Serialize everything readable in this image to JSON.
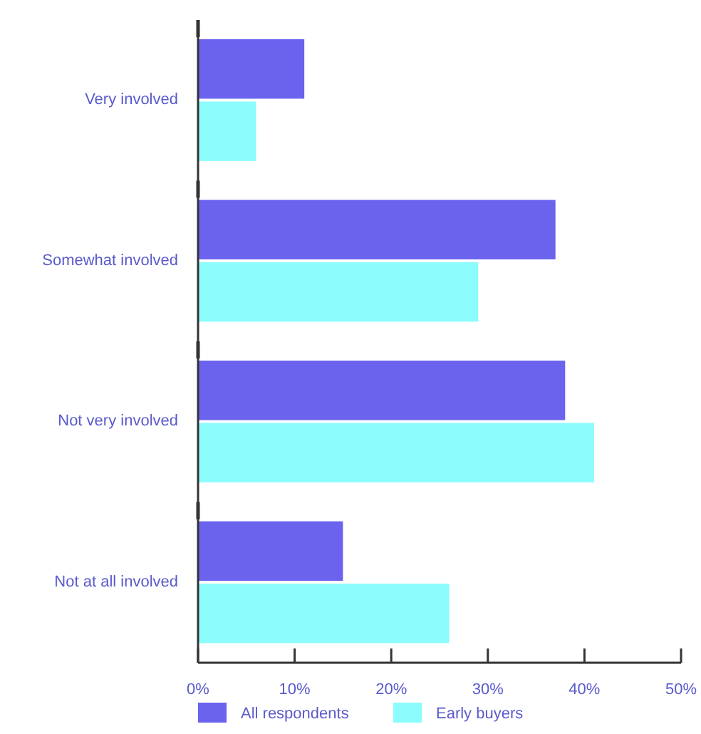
{
  "chart_data": {
    "type": "bar",
    "orientation": "horizontal",
    "categories": [
      "Very involved",
      "Somewhat involved",
      "Not very involved",
      "Not at all involved"
    ],
    "series": [
      {
        "name": "All respondents",
        "color": "#6b63ee",
        "values": [
          11,
          37,
          38,
          15
        ]
      },
      {
        "name": "Early buyers",
        "color": "#8cfcfc",
        "values": [
          6,
          29,
          41,
          26
        ]
      }
    ],
    "xlim": [
      0,
      50
    ],
    "xticks": [
      {
        "value": 0,
        "label": "0%"
      },
      {
        "value": 10,
        "label": "10%"
      },
      {
        "value": 20,
        "label": "20%"
      },
      {
        "value": 30,
        "label": "30%"
      },
      {
        "value": 40,
        "label": "40%"
      },
      {
        "value": 50,
        "label": "50%"
      }
    ],
    "grid": false,
    "legend": "bottom"
  }
}
